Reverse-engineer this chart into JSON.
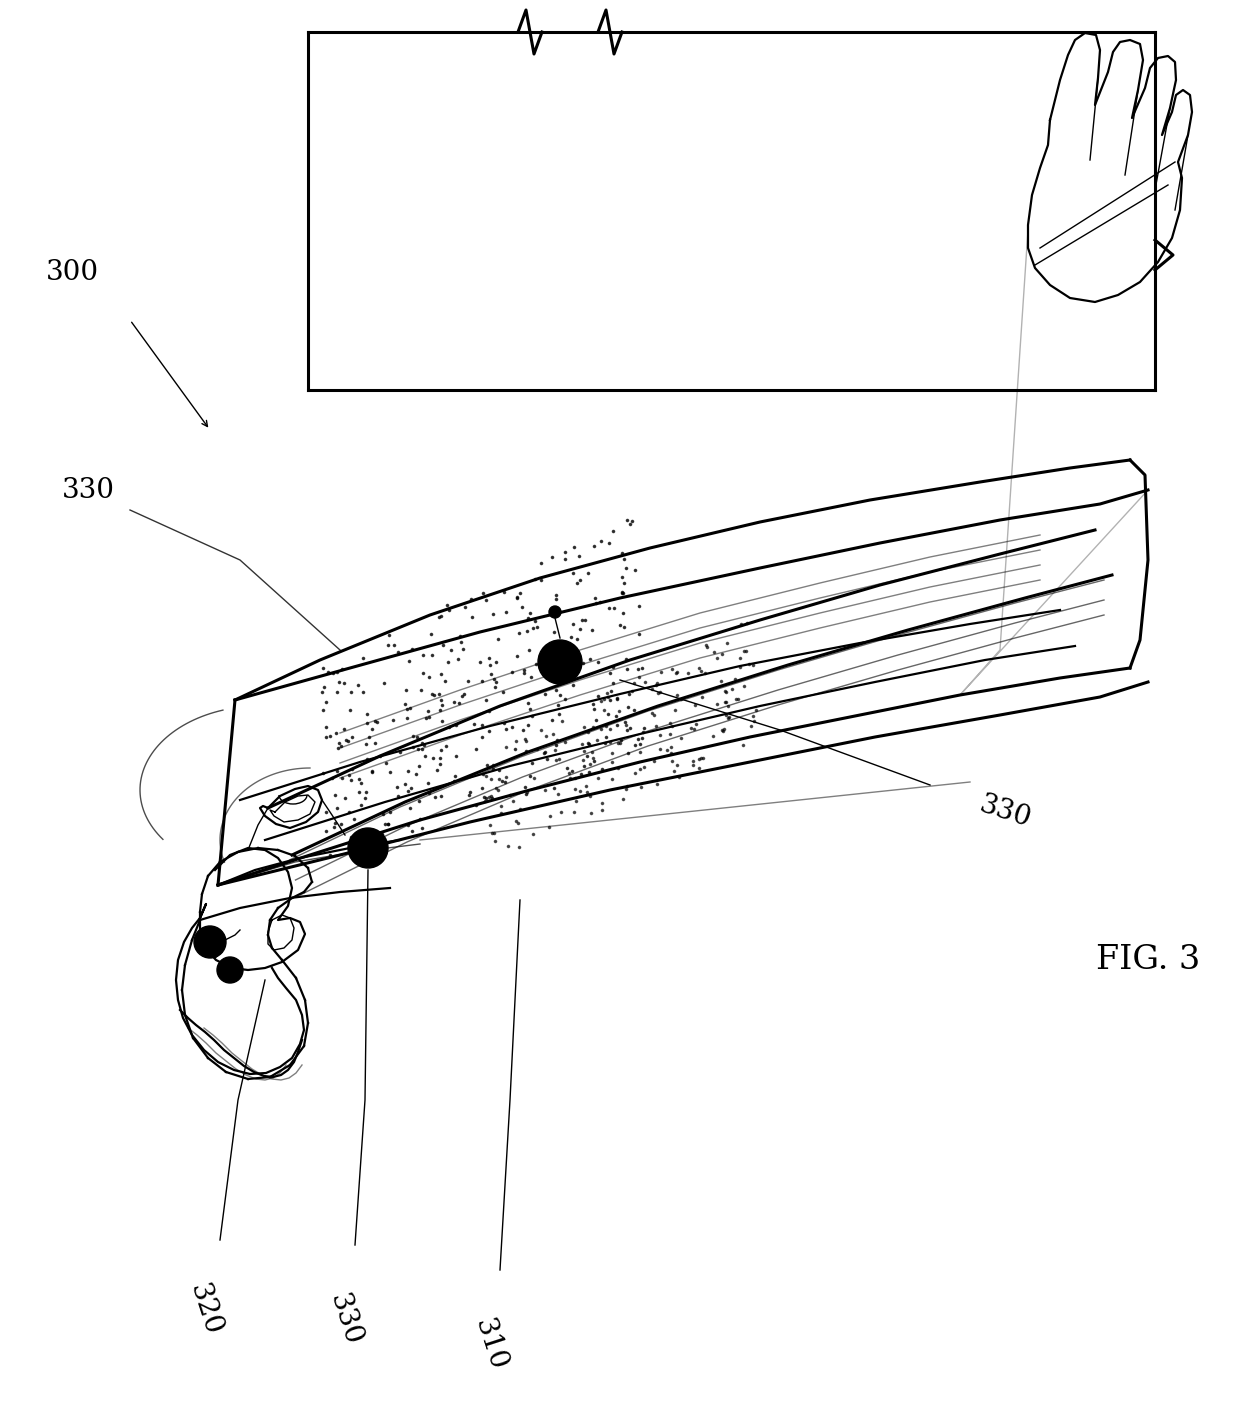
{
  "fig_label": "FIG. 3",
  "ref_300": "300",
  "ref_310": "310",
  "ref_320": "320",
  "ref_330": "330",
  "background": "#ffffff",
  "line_color": "#000000",
  "font_size_label": 20,
  "font_size_fig": 24,
  "lw_thick": 2.2,
  "lw_med": 1.6,
  "lw_thin": 1.0
}
